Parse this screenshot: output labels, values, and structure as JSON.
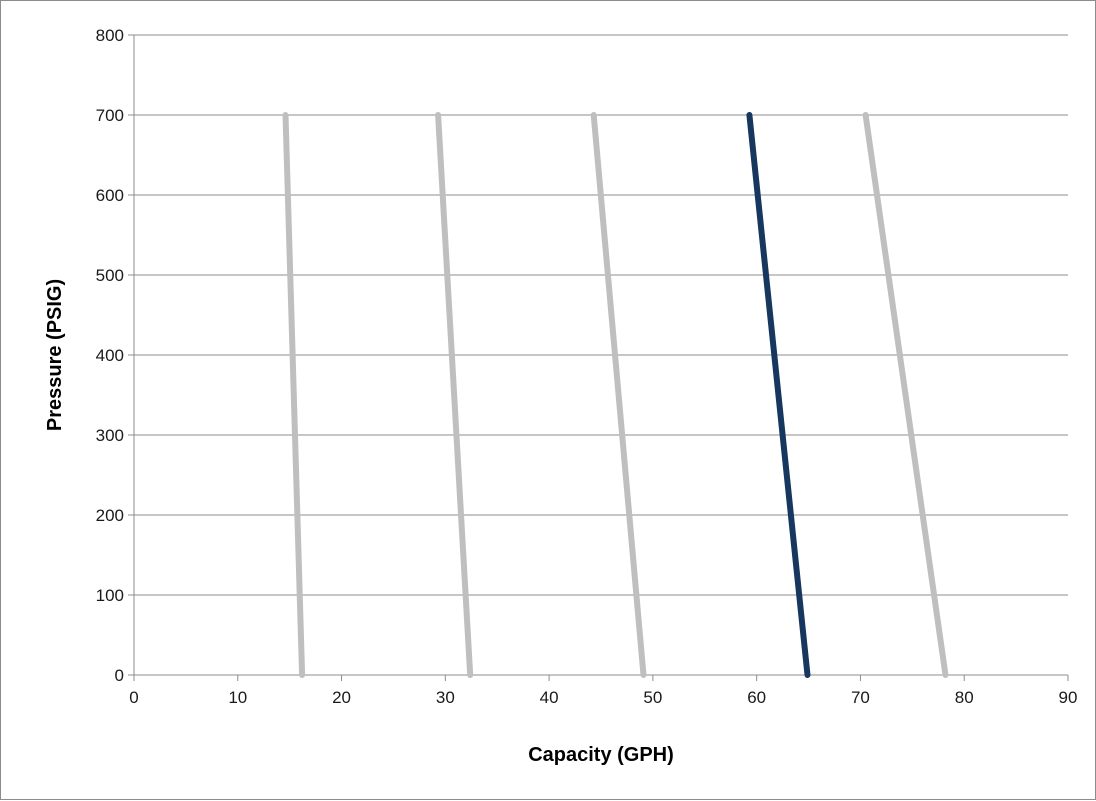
{
  "chart_data": {
    "type": "line",
    "title": "",
    "xlabel": "Capacity (GPH)",
    "ylabel": "Pressure (PSIG)",
    "xlim": [
      0,
      90
    ],
    "ylim": [
      0,
      800
    ],
    "xticks": [
      0,
      10,
      20,
      30,
      40,
      50,
      60,
      70,
      80,
      90
    ],
    "yticks": [
      0,
      100,
      200,
      300,
      400,
      500,
      600,
      700,
      800
    ],
    "grid": "horizontal",
    "legend": "none",
    "series": [
      {
        "x": [
          16.2,
          14.6
        ],
        "y": [
          0,
          700
        ],
        "color": "#bfbfbf",
        "highlight": false
      },
      {
        "x": [
          32.4,
          29.3
        ],
        "y": [
          0,
          700
        ],
        "color": "#bfbfbf",
        "highlight": false
      },
      {
        "x": [
          49.1,
          44.3
        ],
        "y": [
          0,
          700
        ],
        "color": "#bfbfbf",
        "highlight": false
      },
      {
        "x": [
          64.9,
          59.3
        ],
        "y": [
          0,
          700
        ],
        "color": "#17375e",
        "highlight": true
      },
      {
        "x": [
          78.2,
          70.5
        ],
        "y": [
          0,
          700
        ],
        "color": "#bfbfbf",
        "highlight": false
      }
    ],
    "colors": {
      "grid": "#8c8c8c",
      "axis": "#8c8c8c",
      "text": "#1a1a1a"
    }
  }
}
